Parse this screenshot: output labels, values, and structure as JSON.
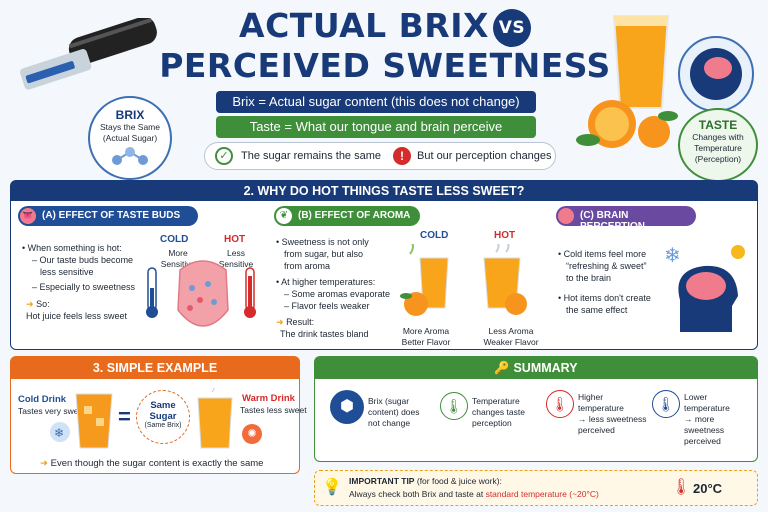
{
  "header": {
    "title_line1": "ACTUAL BRIX",
    "vs": "VS",
    "title_line2": "PERCEIVED SWEETNESS"
  },
  "brix_badge": {
    "title": "BRIX",
    "line1": "Stays the Same",
    "line2": "(Actual Sugar)"
  },
  "taste_badge": {
    "title": "TASTE",
    "line1": "Changes with",
    "line2": "Temperature",
    "line3": "(Perception)"
  },
  "definitions": {
    "brix": "Brix = Actual sugar content (this does not change)",
    "taste": "Taste = What our tongue and brain perceive"
  },
  "checks": {
    "sugar_same": "The sugar remains the same",
    "perception_changes": "But our perception changes"
  },
  "section2": {
    "title": "2. WHY DO HOT THINGS TASTE LESS SWEET?",
    "taste_buds": {
      "header": "(A) EFFECT OF TASTE BUDS",
      "intro": "When something is hot:",
      "b1a": "Our taste buds become",
      "b1b": "less sensitive",
      "b2": "Especially to sweetness",
      "so": "So:",
      "conclusion": "Hot juice feels less sweet",
      "cold_label": "COLD",
      "cold_sub1": "More",
      "cold_sub2": "Sensitive",
      "hot_label": "HOT",
      "hot_sub1": "Less",
      "hot_sub2": "Sensitive"
    },
    "aroma": {
      "header": "(B) EFFECT OF AROMA",
      "b1a": "Sweetness is not only",
      "b1b": "from sugar, but also",
      "b1c": "from aroma",
      "b2": "At higher temperatures:",
      "b2a": "Some aromas evaporate",
      "b2b": "Flavor feels weaker",
      "result": "Result:",
      "result_text": "The drink tastes bland",
      "cold_label": "COLD",
      "hot_label": "HOT",
      "cold_cap1": "More Aroma",
      "cold_cap2": "Better Flavor",
      "hot_cap1": "Less Aroma",
      "hot_cap2": "Weaker Flavor"
    },
    "brain": {
      "header": "(C) BRAIN PERCEPTION",
      "b1a": "Cold items feel more",
      "b1b": "“refreshing & sweet”",
      "b1c": "to the brain",
      "b2a": "Hot items don't create",
      "b2b": "the same effect"
    }
  },
  "section3": {
    "title": "3. SIMPLE EXAMPLE",
    "cold_drink": "Cold Drink",
    "cold_sub": "Tastes very sweet",
    "equals": "=",
    "same_sugar1": "Same",
    "same_sugar2": "Sugar",
    "same_sugar3": "(Same Brix)",
    "warm_drink": "Warm Drink",
    "warm_sub": "Tastes less sweet",
    "footer": "Even though the sugar content is exactly the same"
  },
  "summary": {
    "title": "SUMMARY",
    "i1a": "Brix (sugar",
    "i1b": "content) does",
    "i1c": "not change",
    "i2a": "Temperature",
    "i2b": "changes taste",
    "i2c": "perception",
    "i3a": "Higher",
    "i3b": "temperature",
    "i3c": "→ less sweetness",
    "i3d": "perceived",
    "i4a": "Lower",
    "i4b": "temperature",
    "i4c": "→ more sweetness",
    "i4d": "perceived"
  },
  "tip": {
    "label": "IMPORTANT TIP",
    "label_rest": "(for food & juice work):",
    "line2": "Always check both Brix and taste at",
    "highlight": "standard temperature (~20°C)",
    "temp": "20°C"
  },
  "colors": {
    "navy": "#183a78",
    "green": "#3f8f3a",
    "orange": "#e86a1c",
    "purple": "#6a4aa0",
    "red": "#d62b2b"
  }
}
